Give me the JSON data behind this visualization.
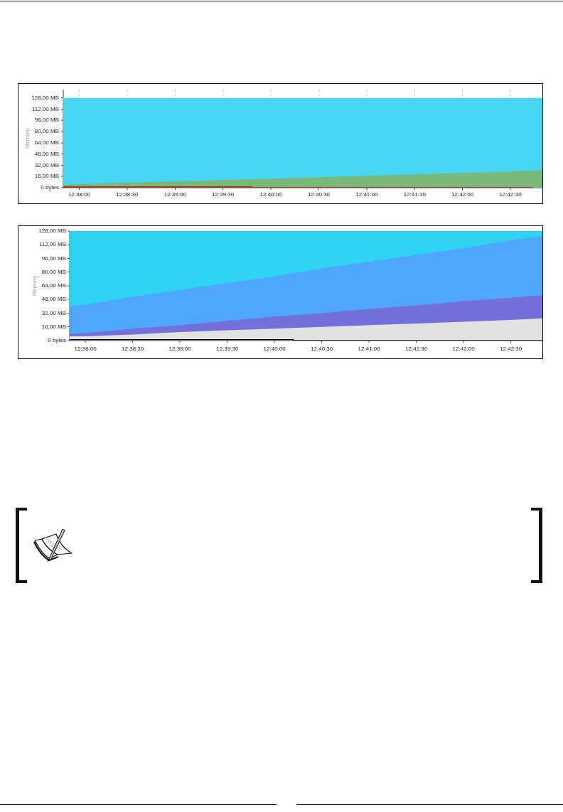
{
  "chart_data": [
    {
      "type": "area",
      "ylabel": "Memory",
      "xlim": [
        12.630556,
        12.713889
      ],
      "xticks": [
        {
          "value": 12.633333,
          "label": "12:38:00"
        },
        {
          "value": 12.641667,
          "label": "12:38:30"
        },
        {
          "value": 12.65,
          "label": "12:39:00"
        },
        {
          "value": 12.658333,
          "label": "12:39:30"
        },
        {
          "value": 12.666667,
          "label": "12:40:00"
        },
        {
          "value": 12.675,
          "label": "12:40:30"
        },
        {
          "value": 12.683333,
          "label": "12:41:00"
        },
        {
          "value": 12.691667,
          "label": "12:41:30"
        },
        {
          "value": 12.7,
          "label": "12:42:00"
        },
        {
          "value": 12.708333,
          "label": "12:42:30"
        }
      ],
      "ylim": [
        0,
        140
      ],
      "yticks": [
        {
          "value": 0,
          "label": "0 bytes"
        },
        {
          "value": 16,
          "label": "16,00 MB"
        },
        {
          "value": 32,
          "label": "32,00 MB"
        },
        {
          "value": 48,
          "label": "48,00 MB"
        },
        {
          "value": 64,
          "label": "64,00 MB"
        },
        {
          "value": 80,
          "label": "80,00 MB"
        },
        {
          "value": 96,
          "label": "96,00 MB"
        },
        {
          "value": 112,
          "label": "112,00 MB"
        },
        {
          "value": 128,
          "label": "128,00 MB"
        }
      ],
      "grid": "x",
      "bands": [
        {
          "axis": "y",
          "from": 0,
          "to": 128,
          "color": "#48d6f5"
        }
      ],
      "series": [
        {
          "color": "#78b878",
          "x": [
            12.630556,
            12.633333,
            12.641667,
            12.65,
            12.658333,
            12.666667,
            12.675,
            12.683333,
            12.691667,
            12.7,
            12.708333,
            12.713889
          ],
          "values": [
            4,
            5,
            7,
            9,
            11,
            13,
            15,
            17,
            19,
            21,
            23,
            25
          ]
        },
        {
          "type": "line",
          "color": "#b01010",
          "x": [
            12.630556,
            12.663333,
            12.663333,
            12.712222
          ],
          "values": [
            1,
            1,
            0,
            0
          ]
        }
      ]
    },
    {
      "type": "area",
      "ylabel": "Memory",
      "xlim": [
        12.630556,
        12.713889
      ],
      "xticks": [
        {
          "value": 12.633333,
          "label": "12:38:00"
        },
        {
          "value": 12.641667,
          "label": "12:38:30"
        },
        {
          "value": 12.65,
          "label": "12:39:00"
        },
        {
          "value": 12.658333,
          "label": "12:39:30"
        },
        {
          "value": 12.666667,
          "label": "12:40:00"
        },
        {
          "value": 12.675,
          "label": "12:40:30"
        },
        {
          "value": 12.683333,
          "label": "12:41:00"
        },
        {
          "value": 12.691667,
          "label": "12:41:30"
        },
        {
          "value": 12.7,
          "label": "12:42:00"
        },
        {
          "value": 12.708333,
          "label": "12:42:30"
        }
      ],
      "ylim": [
        0,
        128
      ],
      "yticks": [
        {
          "value": 0,
          "label": "0 bytes"
        },
        {
          "value": 16,
          "label": "16,00 MB"
        },
        {
          "value": 32,
          "label": "32,00 MB"
        },
        {
          "value": 48,
          "label": "48,00 MB"
        },
        {
          "value": 64,
          "label": "64,00 MB"
        },
        {
          "value": 80,
          "label": "80,00 MB"
        },
        {
          "value": 96,
          "label": "96,00 MB"
        },
        {
          "value": 112,
          "label": "112,00 MB"
        },
        {
          "value": 128,
          "label": "128,00 MB"
        }
      ],
      "series": [
        {
          "color": "#2ed2f2",
          "x": [
            12.630556,
            12.633333,
            12.641667,
            12.65,
            12.658333,
            12.666667,
            12.675,
            12.683333,
            12.691667,
            12.7,
            12.708333,
            12.713889
          ],
          "values": [
            128,
            128,
            128,
            128,
            128,
            128,
            128,
            128,
            128,
            128,
            128,
            128
          ]
        },
        {
          "color": "#50a6fd",
          "x": [
            12.630556,
            12.633333,
            12.641667,
            12.65,
            12.658333,
            12.666667,
            12.675,
            12.683333,
            12.691667,
            12.7,
            12.708333,
            12.713889
          ],
          "values": [
            40,
            42,
            51,
            59,
            67,
            75,
            84,
            92,
            100,
            108,
            117,
            122
          ]
        },
        {
          "color": "#7470da",
          "x": [
            12.630556,
            12.633333,
            12.641667,
            12.65,
            12.658333,
            12.666667,
            12.675,
            12.683333,
            12.691667,
            12.7,
            12.708333,
            12.713889
          ],
          "values": [
            8,
            9,
            14,
            18,
            23,
            28,
            32,
            37,
            41,
            46,
            50,
            53
          ]
        },
        {
          "color": "#e2e2e2",
          "x": [
            12.630556,
            12.633333,
            12.641667,
            12.65,
            12.658333,
            12.666667,
            12.675,
            12.683333,
            12.691667,
            12.7,
            12.708333,
            12.713889
          ],
          "values": [
            5,
            5,
            7,
            10,
            12,
            14,
            16,
            18,
            20,
            22,
            24,
            26
          ]
        },
        {
          "type": "line",
          "color": "#000000",
          "x": [
            12.630556,
            12.67,
            12.67,
            12.713889
          ],
          "values": [
            1,
            1,
            0,
            0
          ]
        }
      ]
    }
  ]
}
